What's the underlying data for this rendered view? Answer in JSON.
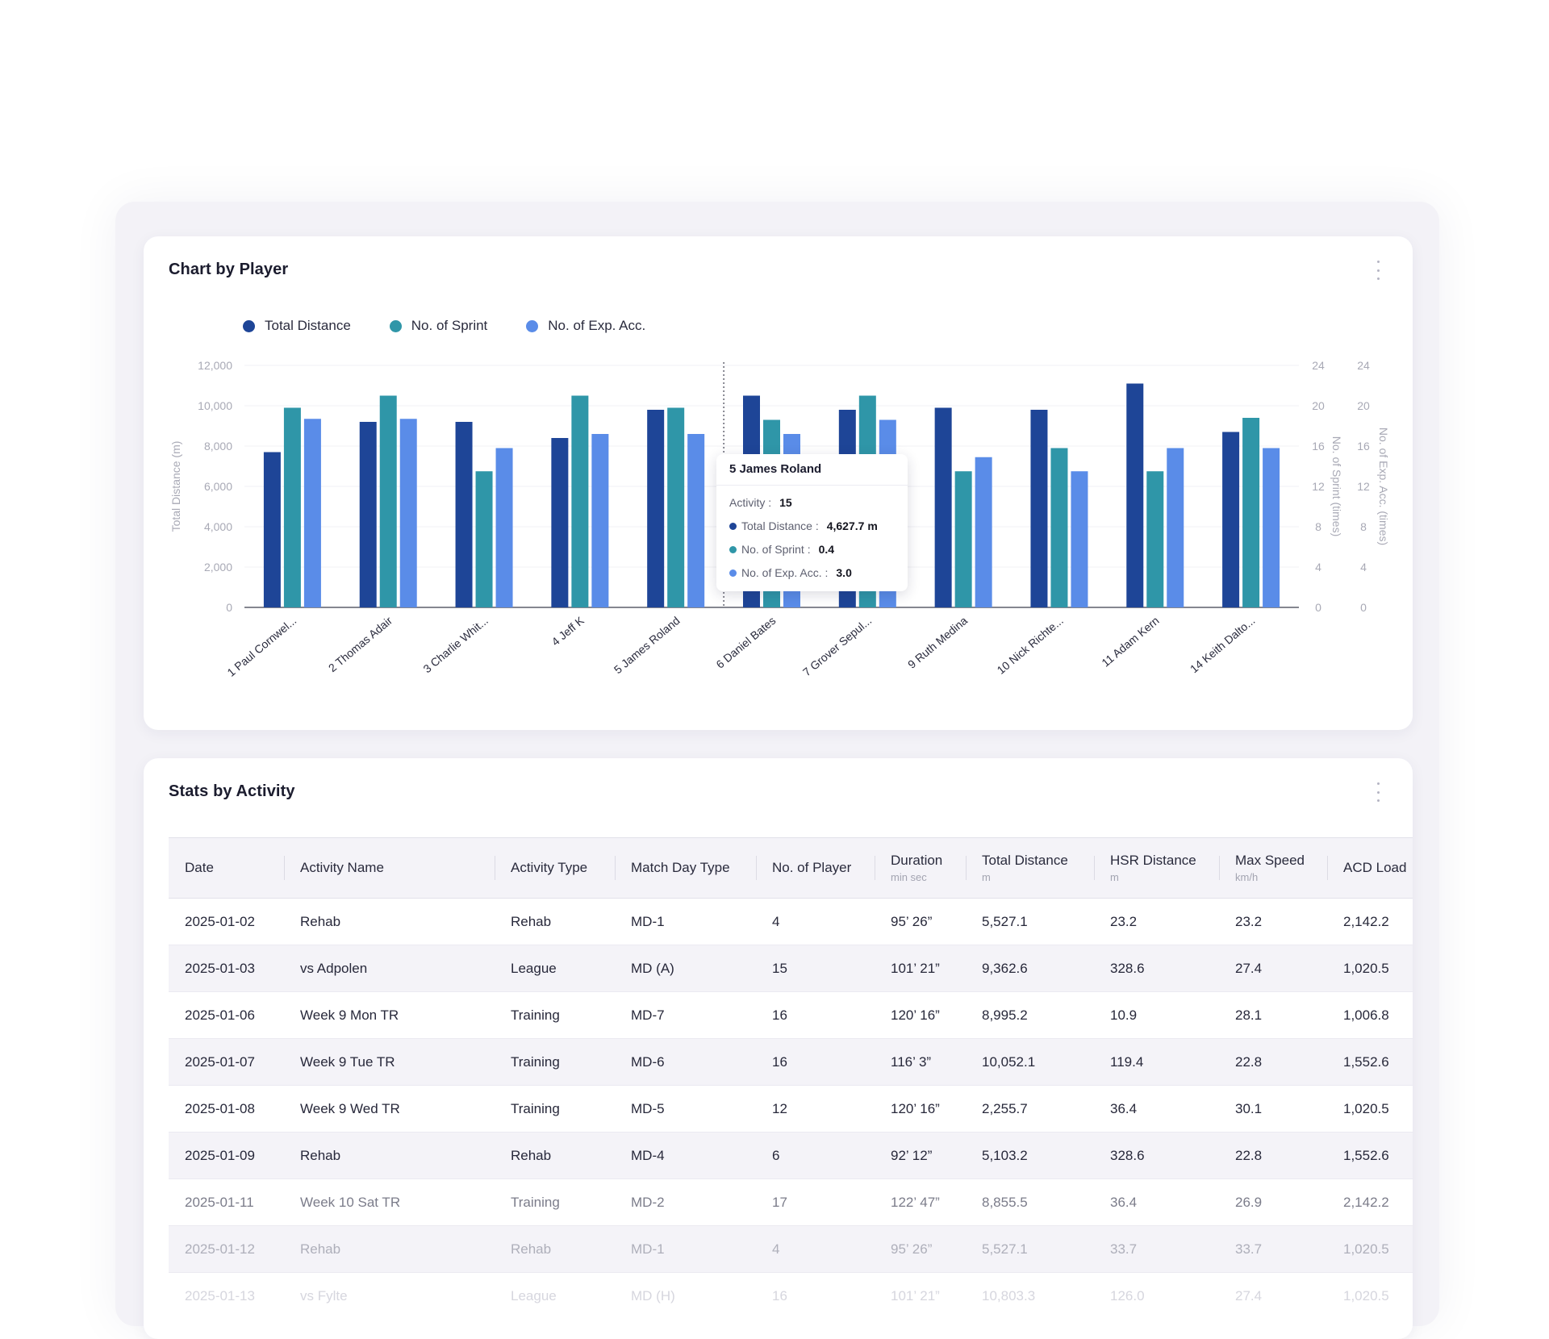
{
  "chart_card": {
    "title": "Chart by Player"
  },
  "colors": {
    "total_distance": "#1e4597",
    "sprint": "#2f96a8",
    "exp_acc": "#5a8ce8"
  },
  "chart_data": {
    "type": "bar",
    "categories": [
      "1 Paul Cornwel...",
      "2 Thomas Adair",
      "3 Charlie Whit...",
      "4 Jeff K",
      "5 James Roland",
      "6 Daniel Bates",
      "7 Grover Sepul...",
      "9 Ruth Medina",
      "10 Nick Richte...",
      "11 Adam Kern",
      "14 Keith Dalto..."
    ],
    "series": [
      {
        "name": "Total Distance",
        "axis": "left",
        "values": [
          7700,
          9200,
          9200,
          8400,
          9800,
          10500,
          9800,
          9900,
          9800,
          11100,
          8700
        ]
      },
      {
        "name": "No. of Sprint",
        "axis": "right1",
        "values": [
          19.8,
          21,
          13.5,
          21,
          19.8,
          18.6,
          21,
          13.5,
          15.8,
          13.5,
          18.8
        ]
      },
      {
        "name": "No. of Exp. Acc.",
        "axis": "right2",
        "values": [
          18.7,
          18.7,
          15.8,
          17.2,
          17.2,
          17.2,
          18.6,
          14.9,
          13.5,
          15.8,
          15.8
        ]
      }
    ],
    "ylabel": "Total Distance (m)",
    "y2label": "No. of Sprint (times)",
    "y3label": "No. of Exp. Acc. (times)",
    "ylim": [
      0,
      12000
    ],
    "y2lim": [
      0,
      24
    ],
    "y3lim": [
      0,
      24
    ],
    "yticks": [
      "0",
      "2,000",
      "4,000",
      "6,000",
      "8,000",
      "10,000",
      "12,000"
    ],
    "y2ticks": [
      "0",
      "4",
      "8",
      "12",
      "16",
      "20",
      "24"
    ],
    "y3ticks": [
      "0",
      "4",
      "8",
      "12",
      "16",
      "20",
      "24"
    ],
    "grid": true,
    "legend": "top-left"
  },
  "tooltip": {
    "title": "5 James Roland",
    "activity_label": "Activity :",
    "activity_value": "15",
    "total_distance_label": "Total Distance :",
    "total_distance_value": "4,627.7 m",
    "sprint_label": "No. of Sprint :",
    "sprint_value": "0.4",
    "exp_acc_label": "No. of Exp. Acc. :",
    "exp_acc_value": "3.0"
  },
  "table_card": {
    "title": "Stats by Activity",
    "columns": [
      {
        "label": "Date",
        "unit": ""
      },
      {
        "label": "Activity Name",
        "unit": ""
      },
      {
        "label": "Activity Type",
        "unit": ""
      },
      {
        "label": "Match Day Type",
        "unit": ""
      },
      {
        "label": "No. of Player",
        "unit": ""
      },
      {
        "label": "Duration",
        "unit": "min sec"
      },
      {
        "label": "Total Distance",
        "unit": "m"
      },
      {
        "label": "HSR Distance",
        "unit": "m"
      },
      {
        "label": "Max Speed",
        "unit": "km/h"
      },
      {
        "label": "ACD Load",
        "unit": ""
      }
    ],
    "rows": [
      [
        "2025-01-02",
        "Rehab",
        "Rehab",
        "MD-1",
        "4",
        "95’ 26”",
        "5,527.1",
        "23.2",
        "23.2",
        "2,142.2"
      ],
      [
        "2025-01-03",
        "vs Adpolen",
        "League",
        "MD (A)",
        "15",
        "101’ 21”",
        "9,362.6",
        "328.6",
        "27.4",
        "1,020.5"
      ],
      [
        "2025-01-06",
        "Week 9 Mon TR",
        "Training",
        "MD-7",
        "16",
        "120’ 16”",
        "8,995.2",
        "10.9",
        "28.1",
        "1,006.8"
      ],
      [
        "2025-01-07",
        "Week 9 Tue TR",
        "Training",
        "MD-6",
        "16",
        "116’ 3”",
        "10,052.1",
        "119.4",
        "22.8",
        "1,552.6"
      ],
      [
        "2025-01-08",
        "Week 9 Wed TR",
        "Training",
        "MD-5",
        "12",
        "120’ 16”",
        "2,255.7",
        "36.4",
        "30.1",
        "1,020.5"
      ],
      [
        "2025-01-09",
        "Rehab",
        "Rehab",
        "MD-4",
        "6",
        "92’ 12”",
        "5,103.2",
        "328.6",
        "22.8",
        "1,552.6"
      ],
      [
        "2025-01-11",
        "Week 10 Sat TR",
        "Training",
        "MD-2",
        "17",
        "122’ 47”",
        "8,855.5",
        "36.4",
        "26.9",
        "2,142.2"
      ],
      [
        "2025-01-12",
        "Rehab",
        "Rehab",
        "MD-1",
        "4",
        "95’ 26”",
        "5,527.1",
        "33.7",
        "33.7",
        "1,020.5"
      ],
      [
        "2025-01-13",
        "vs Fylte",
        "League",
        "MD (H)",
        "16",
        "101’ 21”",
        "10,803.3",
        "126.0",
        "27.4",
        "1,020.5"
      ]
    ]
  }
}
